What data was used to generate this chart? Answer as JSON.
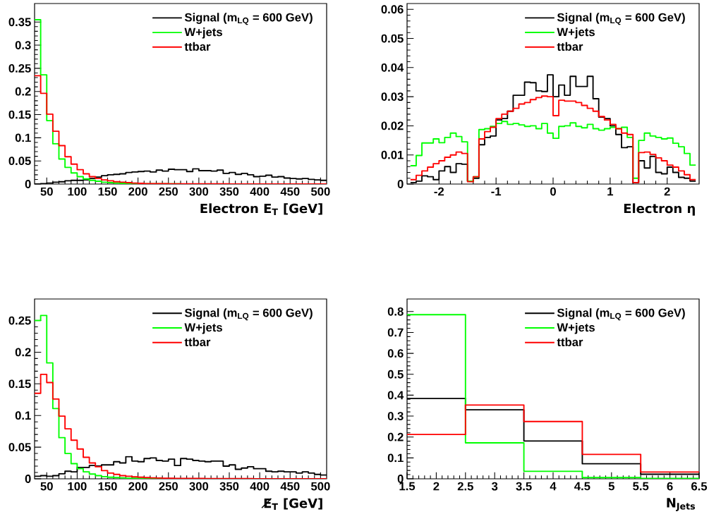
{
  "chart_data": [
    {
      "type": "histogram",
      "xlabel": "Electron E$_{T}$ [GeV]",
      "xlim": [
        30,
        510
      ],
      "xticks": [
        50,
        100,
        150,
        200,
        250,
        300,
        350,
        400,
        450,
        500
      ],
      "ylim": [
        0,
        0.39
      ],
      "yticks": [
        0,
        0.05,
        0.1,
        0.15,
        0.2,
        0.25,
        0.3,
        0.35
      ],
      "legend": "top right",
      "bins": [
        30,
        40,
        50,
        60,
        70,
        80,
        90,
        100,
        110,
        120,
        130,
        140,
        150,
        160,
        170,
        180,
        190,
        200,
        210,
        220,
        230,
        240,
        250,
        260,
        270,
        280,
        290,
        300,
        310,
        320,
        330,
        340,
        350,
        360,
        370,
        380,
        390,
        400,
        410,
        420,
        430,
        440,
        450,
        460,
        470,
        480,
        490,
        500,
        510
      ],
      "series": [
        {
          "name": "Signal (m$_{LQ}$ = 600 GeV)",
          "color": "#000000",
          "values": [
            0.0,
            0.001,
            0.002,
            0.004,
            0.005,
            0.007,
            0.008,
            0.008,
            0.009,
            0.012,
            0.015,
            0.018,
            0.02,
            0.021,
            0.022,
            0.025,
            0.026,
            0.027,
            0.028,
            0.026,
            0.03,
            0.028,
            0.032,
            0.031,
            0.031,
            0.027,
            0.033,
            0.029,
            0.029,
            0.028,
            0.03,
            0.023,
            0.025,
            0.021,
            0.023,
            0.02,
            0.016,
            0.017,
            0.019,
            0.015,
            0.016,
            0.013,
            0.012,
            0.011,
            0.012,
            0.01,
            0.009,
            0.008
          ]
        },
        {
          "name": "W+jets",
          "color": "#00ff00",
          "values": [
            0.355,
            0.236,
            0.137,
            0.087,
            0.054,
            0.036,
            0.024,
            0.016,
            0.011,
            0.008,
            0.006,
            0.004,
            0.003,
            0.002,
            0.0015,
            0.001,
            0.0008,
            0.0006,
            0.0005,
            0.0004,
            0.0003,
            0.0003,
            0.0003,
            0.0003,
            0.0002,
            0.0002,
            0.0002,
            0.0002,
            0.0001,
            0.0001,
            0.0001,
            0.0001,
            0.0001,
            0.0001,
            0,
            0,
            0,
            0,
            0,
            0,
            0,
            0,
            0,
            0,
            0,
            0,
            0,
            0
          ]
        },
        {
          "name": "ttbar",
          "color": "#ff0000",
          "values": [
            0.234,
            0.196,
            0.151,
            0.114,
            0.083,
            0.059,
            0.043,
            0.031,
            0.022,
            0.016,
            0.012,
            0.009,
            0.007,
            0.005,
            0.004,
            0.003,
            0.002,
            0.0015,
            0.001,
            0.001,
            0.0008,
            0.0007,
            0.0006,
            0.0005,
            0.0004,
            0.0004,
            0.0004,
            0.0004,
            0.0003,
            0.0003,
            0.0003,
            0.0003,
            0.0002,
            0.0002,
            0.0002,
            0.0002,
            0.0002,
            0.0002,
            0.0001,
            0.0001,
            0.0001,
            0.0001,
            0.0001,
            0.0001,
            0.0001,
            0.0001,
            0.0001,
            0.0001
          ]
        }
      ]
    },
    {
      "type": "histogram",
      "xlabel": "Electron η",
      "xlim": [
        -2.56,
        2.56
      ],
      "xticks": [
        -2,
        -1,
        0,
        1,
        2
      ],
      "ylim": [
        0,
        0.062
      ],
      "yticks": [
        0,
        0.01,
        0.02,
        0.03,
        0.04,
        0.05,
        0.06
      ],
      "legend": "top right",
      "bins": [
        -2.5,
        -2.4,
        -2.3,
        -2.2,
        -2.1,
        -2.0,
        -1.9,
        -1.8,
        -1.7,
        -1.6,
        -1.5,
        -1.4,
        -1.3,
        -1.2,
        -1.1,
        -1.0,
        -0.9,
        -0.8,
        -0.7,
        -0.6,
        -0.5,
        -0.4,
        -0.3,
        -0.2,
        -0.1,
        0.0,
        0.1,
        0.2,
        0.3,
        0.4,
        0.5,
        0.6,
        0.7,
        0.8,
        0.9,
        1.0,
        1.1,
        1.2,
        1.3,
        1.4,
        1.5,
        1.6,
        1.7,
        1.8,
        1.9,
        2.0,
        2.1,
        2.2,
        2.3,
        2.4,
        2.5
      ],
      "series": [
        {
          "name": "Signal (m$_{LQ}$ = 600 GeV)",
          "color": "#000000",
          "values": [
            0.0005,
            0.001,
            0.0028,
            0.0025,
            0.0015,
            0.0045,
            0.006,
            0.004,
            0.007,
            0.0068,
            0.001,
            0.002,
            0.0135,
            0.016,
            0.0165,
            0.022,
            0.0225,
            0.025,
            0.0305,
            0.0305,
            0.035,
            0.0348,
            0.032,
            0.0318,
            0.0375,
            0.03,
            0.034,
            0.0305,
            0.037,
            0.0335,
            0.0335,
            0.037,
            0.0293,
            0.023,
            0.0225,
            0.02,
            0.017,
            0.0125,
            0.0128,
            0.0005,
            0.008,
            0.0055,
            0.0095,
            0.004,
            0.0035,
            0.0058,
            0.004,
            0.0023,
            0.002,
            0.001
          ]
        },
        {
          "name": "W+jets",
          "color": "#00ff00",
          "values": [
            0.0063,
            0.0098,
            0.0141,
            0.0141,
            0.0155,
            0.0142,
            0.016,
            0.0175,
            0.0163,
            0.0145,
            0.001,
            0.0025,
            0.0187,
            0.019,
            0.0198,
            0.0208,
            0.0215,
            0.0205,
            0.0208,
            0.0203,
            0.0198,
            0.02,
            0.019,
            0.0208,
            0.0175,
            0.0157,
            0.0198,
            0.02,
            0.021,
            0.0198,
            0.0193,
            0.0205,
            0.019,
            0.0185,
            0.019,
            0.0195,
            0.019,
            0.0195,
            0.016,
            0.002,
            0.015,
            0.0175,
            0.0165,
            0.016,
            0.0155,
            0.0158,
            0.014,
            0.0128,
            0.0105,
            0.0065
          ]
        },
        {
          "name": "ttbar",
          "color": "#ff0000",
          "values": [
            0.0015,
            0.003,
            0.0045,
            0.0058,
            0.007,
            0.008,
            0.0092,
            0.01,
            0.011,
            0.0105,
            0.0008,
            0.0025,
            0.0155,
            0.018,
            0.0195,
            0.0225,
            0.024,
            0.025,
            0.026,
            0.0275,
            0.028,
            0.029,
            0.0297,
            0.0302,
            0.03,
            0.0235,
            0.0288,
            0.0285,
            0.0285,
            0.028,
            0.027,
            0.026,
            0.025,
            0.0232,
            0.022,
            0.0205,
            0.019,
            0.0175,
            0.017,
            0.0005,
            0.0108,
            0.011,
            0.0102,
            0.009,
            0.008,
            0.0065,
            0.0058,
            0.0045,
            0.0032,
            0.0015
          ]
        }
      ]
    },
    {
      "type": "histogram",
      "xlabel": "E̸$_{T}$ [GeV]",
      "xlim": [
        30,
        510
      ],
      "xticks": [
        50,
        100,
        150,
        200,
        250,
        300,
        350,
        400,
        450,
        500
      ],
      "ylim": [
        0,
        0.284
      ],
      "yticks": [
        0,
        0.05,
        0.1,
        0.15,
        0.2,
        0.25
      ],
      "legend": "top right",
      "bins": [
        30,
        40,
        50,
        60,
        70,
        80,
        90,
        100,
        110,
        120,
        130,
        140,
        150,
        160,
        170,
        180,
        190,
        200,
        210,
        220,
        230,
        240,
        250,
        260,
        270,
        280,
        290,
        300,
        310,
        320,
        330,
        340,
        350,
        360,
        370,
        380,
        390,
        400,
        410,
        420,
        430,
        440,
        450,
        460,
        470,
        480,
        490,
        500,
        510
      ],
      "series": [
        {
          "name": "Signal (m$_{LQ}$ = 600 GeV)",
          "color": "#000000",
          "values": [
            0.004,
            0.005,
            0.004,
            0.005,
            0.008,
            0.012,
            0.011,
            0.018,
            0.018,
            0.021,
            0.02,
            0.022,
            0.022,
            0.027,
            0.025,
            0.035,
            0.028,
            0.027,
            0.032,
            0.033,
            0.029,
            0.028,
            0.031,
            0.021,
            0.032,
            0.031,
            0.029,
            0.028,
            0.027,
            0.028,
            0.028,
            0.02,
            0.022,
            0.015,
            0.017,
            0.019,
            0.016,
            0.016,
            0.012,
            0.011,
            0.012,
            0.011,
            0.011,
            0.009,
            0.011,
            0.009,
            0.007,
            0.006
          ]
        },
        {
          "name": "W+jets",
          "color": "#00ff00",
          "values": [
            0.25,
            0.258,
            0.183,
            0.111,
            0.065,
            0.04,
            0.024,
            0.016,
            0.011,
            0.0075,
            0.005,
            0.0035,
            0.0025,
            0.002,
            0.0015,
            0.001,
            0.0008,
            0.0005,
            0.0003,
            0.0002,
            0.0002,
            0.0002,
            0.0002,
            0.0002,
            0.0002,
            0.0002,
            0.0002,
            0.0002,
            0.0001,
            0.0001,
            0.0001,
            0.0001,
            0.0001,
            0.0001,
            0.0001,
            0.0001,
            0.0001,
            0.0001,
            0,
            0,
            0,
            0,
            0,
            0,
            0,
            0,
            0,
            0
          ]
        },
        {
          "name": "ttbar",
          "color": "#ff0000",
          "values": [
            0.135,
            0.165,
            0.152,
            0.126,
            0.099,
            0.079,
            0.061,
            0.047,
            0.034,
            0.025,
            0.019,
            0.013,
            0.009,
            0.007,
            0.005,
            0.004,
            0.003,
            0.0025,
            0.002,
            0.0015,
            0.0012,
            0.001,
            0.0008,
            0.0006,
            0.0005,
            0.0005,
            0.0005,
            0.0005,
            0.0004,
            0.0004,
            0.0004,
            0.0004,
            0.0003,
            0.0003,
            0.0003,
            0.0003,
            0.0002,
            0.0002,
            0.0002,
            0.0002,
            0.0002,
            0.0002,
            0.0001,
            0.0001,
            0.0001,
            0.0001,
            0.0001,
            0.0001
          ]
        }
      ]
    },
    {
      "type": "histogram",
      "xlabel": "N$_{Jets}$",
      "xlim": [
        1.5,
        6.5
      ],
      "xticks": [
        1.5,
        2,
        2.5,
        3,
        3.5,
        4,
        4.5,
        5,
        5.5,
        6,
        6.5
      ],
      "ylim": [
        0,
        0.86
      ],
      "yticks": [
        0,
        0.1,
        0.2,
        0.3,
        0.4,
        0.5,
        0.6,
        0.7,
        0.8
      ],
      "legend": "top right",
      "bins": [
        1.5,
        2.5,
        3.5,
        4.5,
        5.5,
        6.5
      ],
      "series": [
        {
          "name": "Signal (m$_{LQ}$ = 600 GeV)",
          "color": "#000000",
          "values": [
            0.384,
            0.33,
            0.181,
            0.072,
            0.022
          ]
        },
        {
          "name": "W+jets",
          "color": "#00ff00",
          "values": [
            0.785,
            0.172,
            0.036,
            0.006,
            0.002
          ]
        },
        {
          "name": "ttbar",
          "color": "#ff0000",
          "values": [
            0.212,
            0.353,
            0.274,
            0.117,
            0.032
          ]
        }
      ]
    }
  ]
}
